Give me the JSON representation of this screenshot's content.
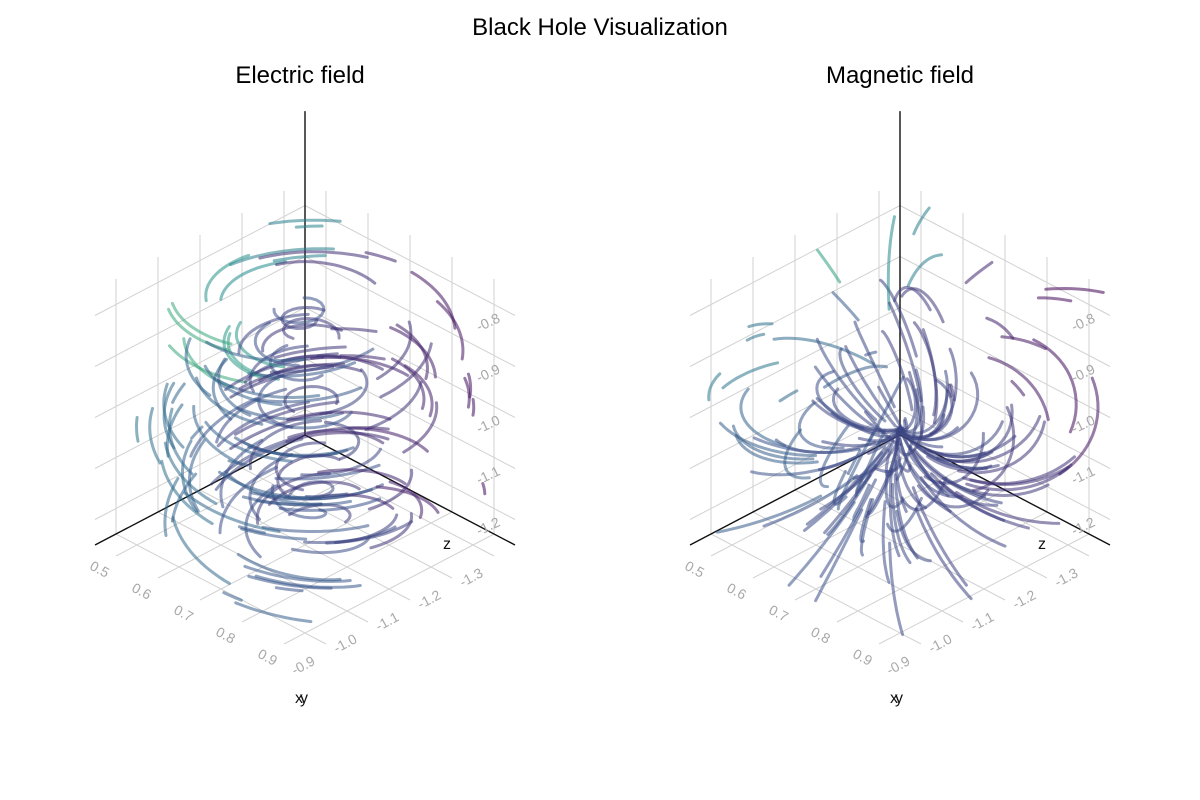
{
  "suptitle": "Black Hole Visualization",
  "chart_data": [
    {
      "type": "streamplot3d",
      "title": "Electric field",
      "xlabel": "x",
      "ylabel": "y",
      "zlabel": "z",
      "x_ticks": [
        "0.5",
        "0.6",
        "0.7",
        "0.8",
        "0.9"
      ],
      "y_ticks": [
        "-1.3",
        "-1.2",
        "-1.1",
        "-1.0",
        "-0.9"
      ],
      "z_ticks": [
        "-1.2",
        "-1.1",
        "-1.0",
        "-0.9",
        "-0.8"
      ],
      "xlim": [
        0.45,
        0.95
      ],
      "ylim": [
        -1.35,
        -0.85
      ],
      "zlim": [
        -1.25,
        -0.75
      ],
      "field": "swirl",
      "colormap": [
        "#440154",
        "#3b528b",
        "#21908d",
        "#5dc963",
        "#fde725"
      ],
      "grid": true
    },
    {
      "type": "streamplot3d",
      "title": "Magnetic field",
      "xlabel": "x",
      "ylabel": "y",
      "zlabel": "z",
      "x_ticks": [
        "0.5",
        "0.6",
        "0.7",
        "0.8",
        "0.9"
      ],
      "y_ticks": [
        "-1.3",
        "-1.2",
        "-1.1",
        "-1.0",
        "-0.9"
      ],
      "z_ticks": [
        "-1.2",
        "-1.1",
        "-1.0",
        "-0.9",
        "-0.8"
      ],
      "xlim": [
        0.45,
        0.95
      ],
      "ylim": [
        -1.35,
        -0.85
      ],
      "zlim": [
        -1.25,
        -0.75
      ],
      "field": "dipole",
      "colormap": [
        "#440154",
        "#3b528b",
        "#21908d",
        "#5dc963",
        "#fde725"
      ],
      "grid": true
    }
  ]
}
